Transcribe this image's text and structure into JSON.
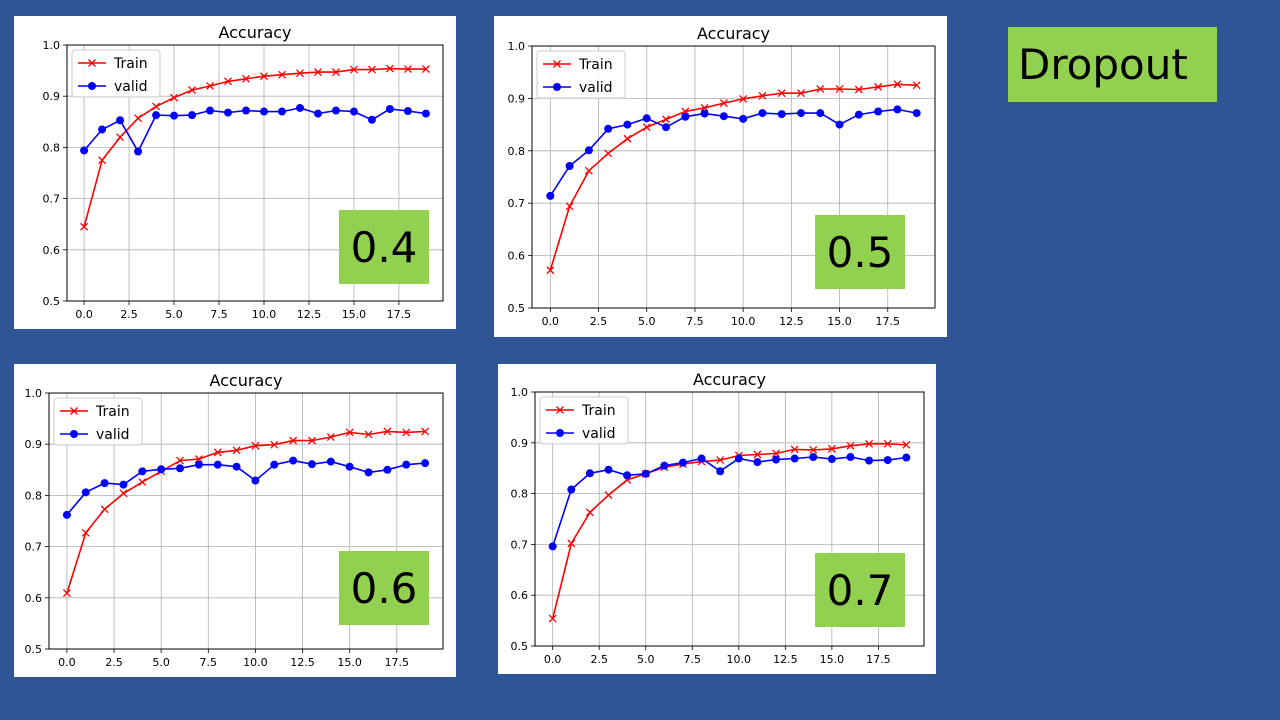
{
  "slide": {
    "title": "Dropout",
    "background": "#2f5597",
    "label_bg": "#92d050"
  },
  "colors": {
    "train": "#ff0000",
    "valid": "#0000ff"
  },
  "chart_data": [
    {
      "type": "line",
      "title": "Accuracy",
      "tag": "0.4",
      "xlabel": "",
      "ylabel": "",
      "xlim": [
        -0.95,
        19.95
      ],
      "ylim": [
        0.5,
        1.0
      ],
      "xticks": [
        "0.0",
        "2.5",
        "5.0",
        "7.5",
        "10.0",
        "12.5",
        "15.0",
        "17.5"
      ],
      "yticks": [
        "0.5",
        "0.6",
        "0.7",
        "0.8",
        "0.9",
        "1.0"
      ],
      "grid": true,
      "legend": "top-left",
      "x": [
        0,
        1,
        2,
        3,
        4,
        5,
        6,
        7,
        8,
        9,
        10,
        11,
        12,
        13,
        14,
        15,
        16,
        17,
        18,
        19
      ],
      "series": [
        {
          "name": "Train",
          "marker": "x",
          "values": [
            0.645,
            0.775,
            0.82,
            0.857,
            0.88,
            0.897,
            0.912,
            0.92,
            0.929,
            0.934,
            0.939,
            0.942,
            0.945,
            0.947,
            0.947,
            0.952,
            0.952,
            0.954,
            0.953,
            0.953
          ]
        },
        {
          "name": "valid",
          "marker": "o",
          "values": [
            0.794,
            0.835,
            0.853,
            0.792,
            0.863,
            0.862,
            0.863,
            0.872,
            0.868,
            0.872,
            0.87,
            0.87,
            0.877,
            0.866,
            0.872,
            0.87,
            0.854,
            0.875,
            0.871,
            0.866
          ]
        }
      ]
    },
    {
      "type": "line",
      "title": "Accuracy",
      "tag": "0.5",
      "xlabel": "",
      "ylabel": "",
      "xlim": [
        -0.95,
        19.95
      ],
      "ylim": [
        0.5,
        1.0
      ],
      "xticks": [
        "0.0",
        "2.5",
        "5.0",
        "7.5",
        "10.0",
        "12.5",
        "15.0",
        "17.5"
      ],
      "yticks": [
        "0.5",
        "0.6",
        "0.7",
        "0.8",
        "0.9",
        "1.0"
      ],
      "grid": true,
      "legend": "top-left",
      "x": [
        0,
        1,
        2,
        3,
        4,
        5,
        6,
        7,
        8,
        9,
        10,
        11,
        12,
        13,
        14,
        15,
        16,
        17,
        18,
        19
      ],
      "series": [
        {
          "name": "Train",
          "marker": "x",
          "values": [
            0.572,
            0.694,
            0.762,
            0.795,
            0.823,
            0.845,
            0.86,
            0.875,
            0.882,
            0.891,
            0.899,
            0.905,
            0.91,
            0.91,
            0.918,
            0.918,
            0.917,
            0.922,
            0.927,
            0.925
          ]
        },
        {
          "name": "valid",
          "marker": "o",
          "values": [
            0.714,
            0.771,
            0.801,
            0.842,
            0.85,
            0.862,
            0.845,
            0.865,
            0.871,
            0.866,
            0.861,
            0.872,
            0.87,
            0.872,
            0.872,
            0.85,
            0.869,
            0.875,
            0.879,
            0.872
          ]
        }
      ]
    },
    {
      "type": "line",
      "title": "Accuracy",
      "tag": "0.6",
      "xlabel": "",
      "ylabel": "",
      "xlim": [
        -0.95,
        19.95
      ],
      "ylim": [
        0.5,
        1.0
      ],
      "xticks": [
        "0.0",
        "2.5",
        "5.0",
        "7.5",
        "10.0",
        "12.5",
        "15.0",
        "17.5"
      ],
      "yticks": [
        "0.5",
        "0.6",
        "0.7",
        "0.8",
        "0.9",
        "1.0"
      ],
      "grid": true,
      "legend": "top-left",
      "x": [
        0,
        1,
        2,
        3,
        4,
        5,
        6,
        7,
        8,
        9,
        10,
        11,
        12,
        13,
        14,
        15,
        16,
        17,
        18,
        19
      ],
      "series": [
        {
          "name": "Train",
          "marker": "x",
          "values": [
            0.609,
            0.727,
            0.773,
            0.804,
            0.826,
            0.847,
            0.868,
            0.871,
            0.884,
            0.888,
            0.897,
            0.899,
            0.907,
            0.907,
            0.914,
            0.923,
            0.919,
            0.925,
            0.923,
            0.925
          ]
        },
        {
          "name": "valid",
          "marker": "o",
          "values": [
            0.762,
            0.806,
            0.824,
            0.821,
            0.847,
            0.851,
            0.853,
            0.86,
            0.86,
            0.856,
            0.829,
            0.86,
            0.868,
            0.861,
            0.866,
            0.856,
            0.845,
            0.85,
            0.86,
            0.863
          ]
        }
      ]
    },
    {
      "type": "line",
      "title": "Accuracy",
      "tag": "0.7",
      "xlabel": "",
      "ylabel": "",
      "xlim": [
        -0.95,
        19.95
      ],
      "ylim": [
        0.5,
        1.0
      ],
      "xticks": [
        "0.0",
        "2.5",
        "5.0",
        "7.5",
        "10.0",
        "12.5",
        "15.0",
        "17.5"
      ],
      "yticks": [
        "0.5",
        "0.6",
        "0.7",
        "0.8",
        "0.9",
        "1.0"
      ],
      "grid": true,
      "legend": "top-left",
      "x": [
        0,
        1,
        2,
        3,
        4,
        5,
        6,
        7,
        8,
        9,
        10,
        11,
        12,
        13,
        14,
        15,
        16,
        17,
        18,
        19
      ],
      "series": [
        {
          "name": "Train",
          "marker": "x",
          "values": [
            0.554,
            0.702,
            0.763,
            0.797,
            0.827,
            0.839,
            0.852,
            0.858,
            0.863,
            0.866,
            0.875,
            0.877,
            0.879,
            0.887,
            0.886,
            0.888,
            0.894,
            0.898,
            0.898,
            0.896
          ]
        },
        {
          "name": "valid",
          "marker": "o",
          "values": [
            0.696,
            0.808,
            0.84,
            0.847,
            0.836,
            0.839,
            0.855,
            0.861,
            0.869,
            0.844,
            0.869,
            0.862,
            0.867,
            0.869,
            0.872,
            0.868,
            0.872,
            0.865,
            0.866,
            0.871
          ]
        }
      ]
    }
  ]
}
